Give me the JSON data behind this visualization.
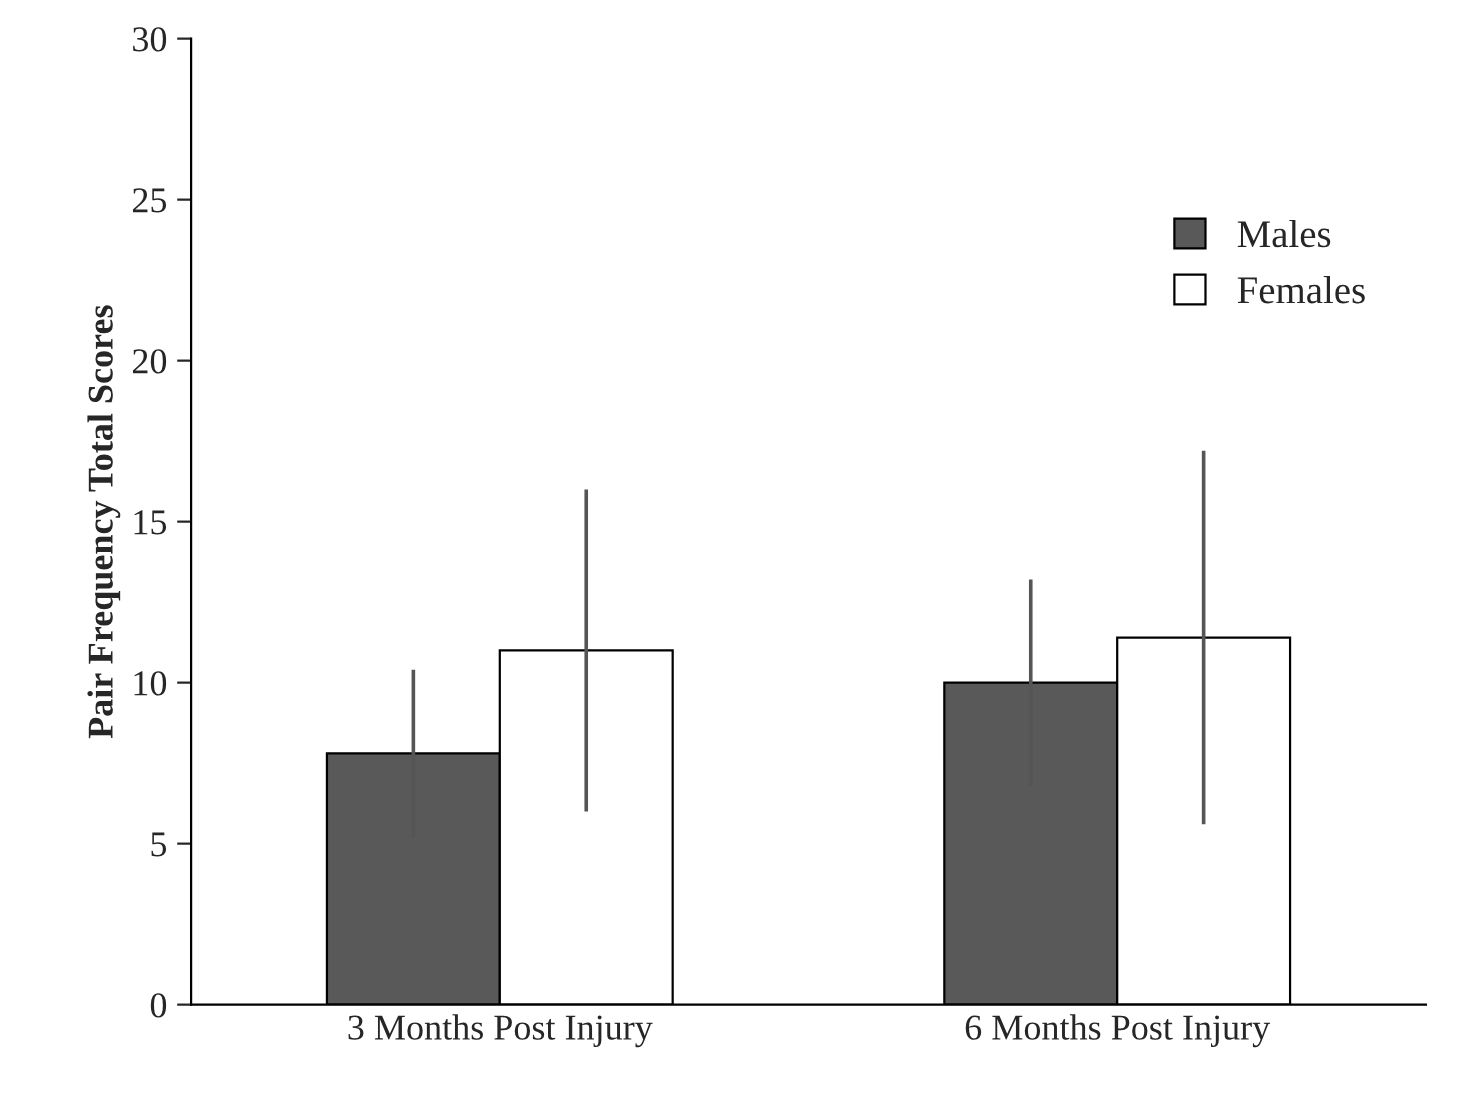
{
  "chart_data": {
    "type": "bar",
    "ylabel": "Pair Frequency Total Scores",
    "categories": [
      "3 Months Post Injury",
      "6 Months Post Injury"
    ],
    "series": [
      {
        "name": "Males",
        "color": "#595959",
        "values": [
          7.8,
          10.0
        ],
        "errors": [
          2.6,
          3.2
        ]
      },
      {
        "name": "Females",
        "color": "#ffffff",
        "values": [
          11.0,
          11.4
        ],
        "errors": [
          5.0,
          5.8
        ]
      }
    ],
    "ylim": [
      0,
      30
    ],
    "yticks": [
      0,
      5,
      10,
      15,
      20,
      25,
      30
    ],
    "grid": false,
    "legend": "top right"
  }
}
